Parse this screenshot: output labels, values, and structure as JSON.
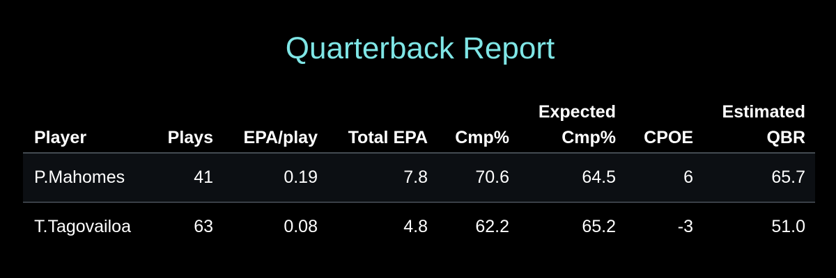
{
  "chart_data": {
    "type": "table",
    "title": "Quarterback Report",
    "columns": [
      {
        "key": "player",
        "lines": [
          "Player"
        ],
        "align": "left"
      },
      {
        "key": "plays",
        "lines": [
          "Plays"
        ],
        "align": "right"
      },
      {
        "key": "epa_play",
        "lines": [
          "EPA/play"
        ],
        "align": "right"
      },
      {
        "key": "total_epa",
        "lines": [
          "Total EPA"
        ],
        "align": "right"
      },
      {
        "key": "cmp_pct",
        "lines": [
          "Cmp%"
        ],
        "align": "right"
      },
      {
        "key": "exp_cmp_pct",
        "lines": [
          "Expected",
          "Cmp%"
        ],
        "align": "right"
      },
      {
        "key": "cpoe",
        "lines": [
          "CPOE"
        ],
        "align": "right"
      },
      {
        "key": "est_qbr",
        "lines": [
          "Estimated",
          "QBR"
        ],
        "align": "right"
      }
    ],
    "rows": [
      {
        "player": "P.Mahomes",
        "plays": "41",
        "epa_play": "0.19",
        "total_epa": "7.8",
        "cmp_pct": "70.6",
        "exp_cmp_pct": "64.5",
        "cpoe": "6",
        "est_qbr": "65.7"
      },
      {
        "player": "T.Tagovailoa",
        "plays": "63",
        "epa_play": "0.08",
        "total_epa": "4.8",
        "cmp_pct": "62.2",
        "exp_cmp_pct": "65.2",
        "cpoe": "-3",
        "est_qbr": "51.0"
      }
    ]
  },
  "colors": {
    "background": "#000000",
    "title": "#7fe6e6",
    "text": "#ffffff",
    "row_highlight": "#0c0f13",
    "divider": "#444b52"
  }
}
